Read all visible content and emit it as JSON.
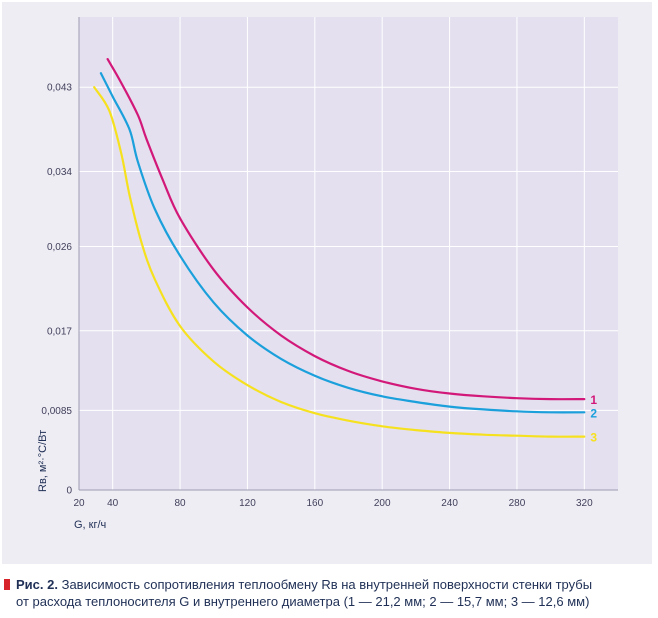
{
  "chart_data": {
    "type": "line",
    "xlabel": "G, кг/ч",
    "ylabel": "Rв, м²·°С/Вт",
    "xlim": [
      20,
      340
    ],
    "ylim": [
      0,
      0.0505
    ],
    "x_ticks": [
      20,
      40,
      80,
      120,
      160,
      200,
      240,
      280,
      320
    ],
    "y_ticks": [
      {
        "value": 0,
        "label": "0"
      },
      {
        "value": 0.0085,
        "label": "0,0085"
      },
      {
        "value": 0.017,
        "label": "0,017"
      },
      {
        "value": 0.026,
        "label": "0,026"
      },
      {
        "value": 0.034,
        "label": "0,034"
      },
      {
        "value": 0.043,
        "label": "0,043"
      }
    ],
    "grid": true,
    "series": [
      {
        "name": "1",
        "color": "#d2197a",
        "points": [
          [
            37,
            0.046
          ],
          [
            45,
            0.0435
          ],
          [
            55,
            0.04
          ],
          [
            60,
            0.0375
          ],
          [
            70,
            0.033
          ],
          [
            80,
            0.029
          ],
          [
            100,
            0.0235
          ],
          [
            120,
            0.0195
          ],
          [
            140,
            0.0165
          ],
          [
            160,
            0.0143
          ],
          [
            180,
            0.0127
          ],
          [
            200,
            0.0116
          ],
          [
            220,
            0.0108
          ],
          [
            240,
            0.0103
          ],
          [
            260,
            0.01
          ],
          [
            280,
            0.0098
          ],
          [
            300,
            0.0097
          ],
          [
            320,
            0.0097
          ]
        ]
      },
      {
        "name": "2",
        "color": "#1ba0dc",
        "points": [
          [
            33,
            0.0445
          ],
          [
            40,
            0.042
          ],
          [
            50,
            0.0385
          ],
          [
            55,
            0.035
          ],
          [
            65,
            0.03
          ],
          [
            80,
            0.025
          ],
          [
            100,
            0.02
          ],
          [
            120,
            0.0165
          ],
          [
            140,
            0.014
          ],
          [
            160,
            0.0122
          ],
          [
            180,
            0.0109
          ],
          [
            200,
            0.01
          ],
          [
            220,
            0.0094
          ],
          [
            240,
            0.0089
          ],
          [
            260,
            0.0086
          ],
          [
            280,
            0.0084
          ],
          [
            300,
            0.0083
          ],
          [
            320,
            0.0083
          ]
        ]
      },
      {
        "name": "3",
        "color": "#f6e11f",
        "points": [
          [
            29,
            0.043
          ],
          [
            38,
            0.0405
          ],
          [
            45,
            0.036
          ],
          [
            50,
            0.0315
          ],
          [
            57,
            0.0265
          ],
          [
            65,
            0.0225
          ],
          [
            80,
            0.0175
          ],
          [
            100,
            0.0137
          ],
          [
            120,
            0.0112
          ],
          [
            140,
            0.0094
          ],
          [
            160,
            0.0082
          ],
          [
            180,
            0.0074
          ],
          [
            200,
            0.0068
          ],
          [
            220,
            0.0064
          ],
          [
            240,
            0.0061
          ],
          [
            260,
            0.0059
          ],
          [
            280,
            0.0058
          ],
          [
            300,
            0.0057
          ],
          [
            320,
            0.0057
          ]
        ]
      }
    ]
  },
  "caption": {
    "line1_label": "Рис. 2.",
    "line1_text": "Зависимость сопротивления теплообмену Rв на внутренней поверхности стенки трубы",
    "line2_text": "от расхода теплоносителя G и внутреннего диаметра (1 — 21,2 мм; 2 — 15,7 мм; 3 — 12,6 мм)"
  }
}
